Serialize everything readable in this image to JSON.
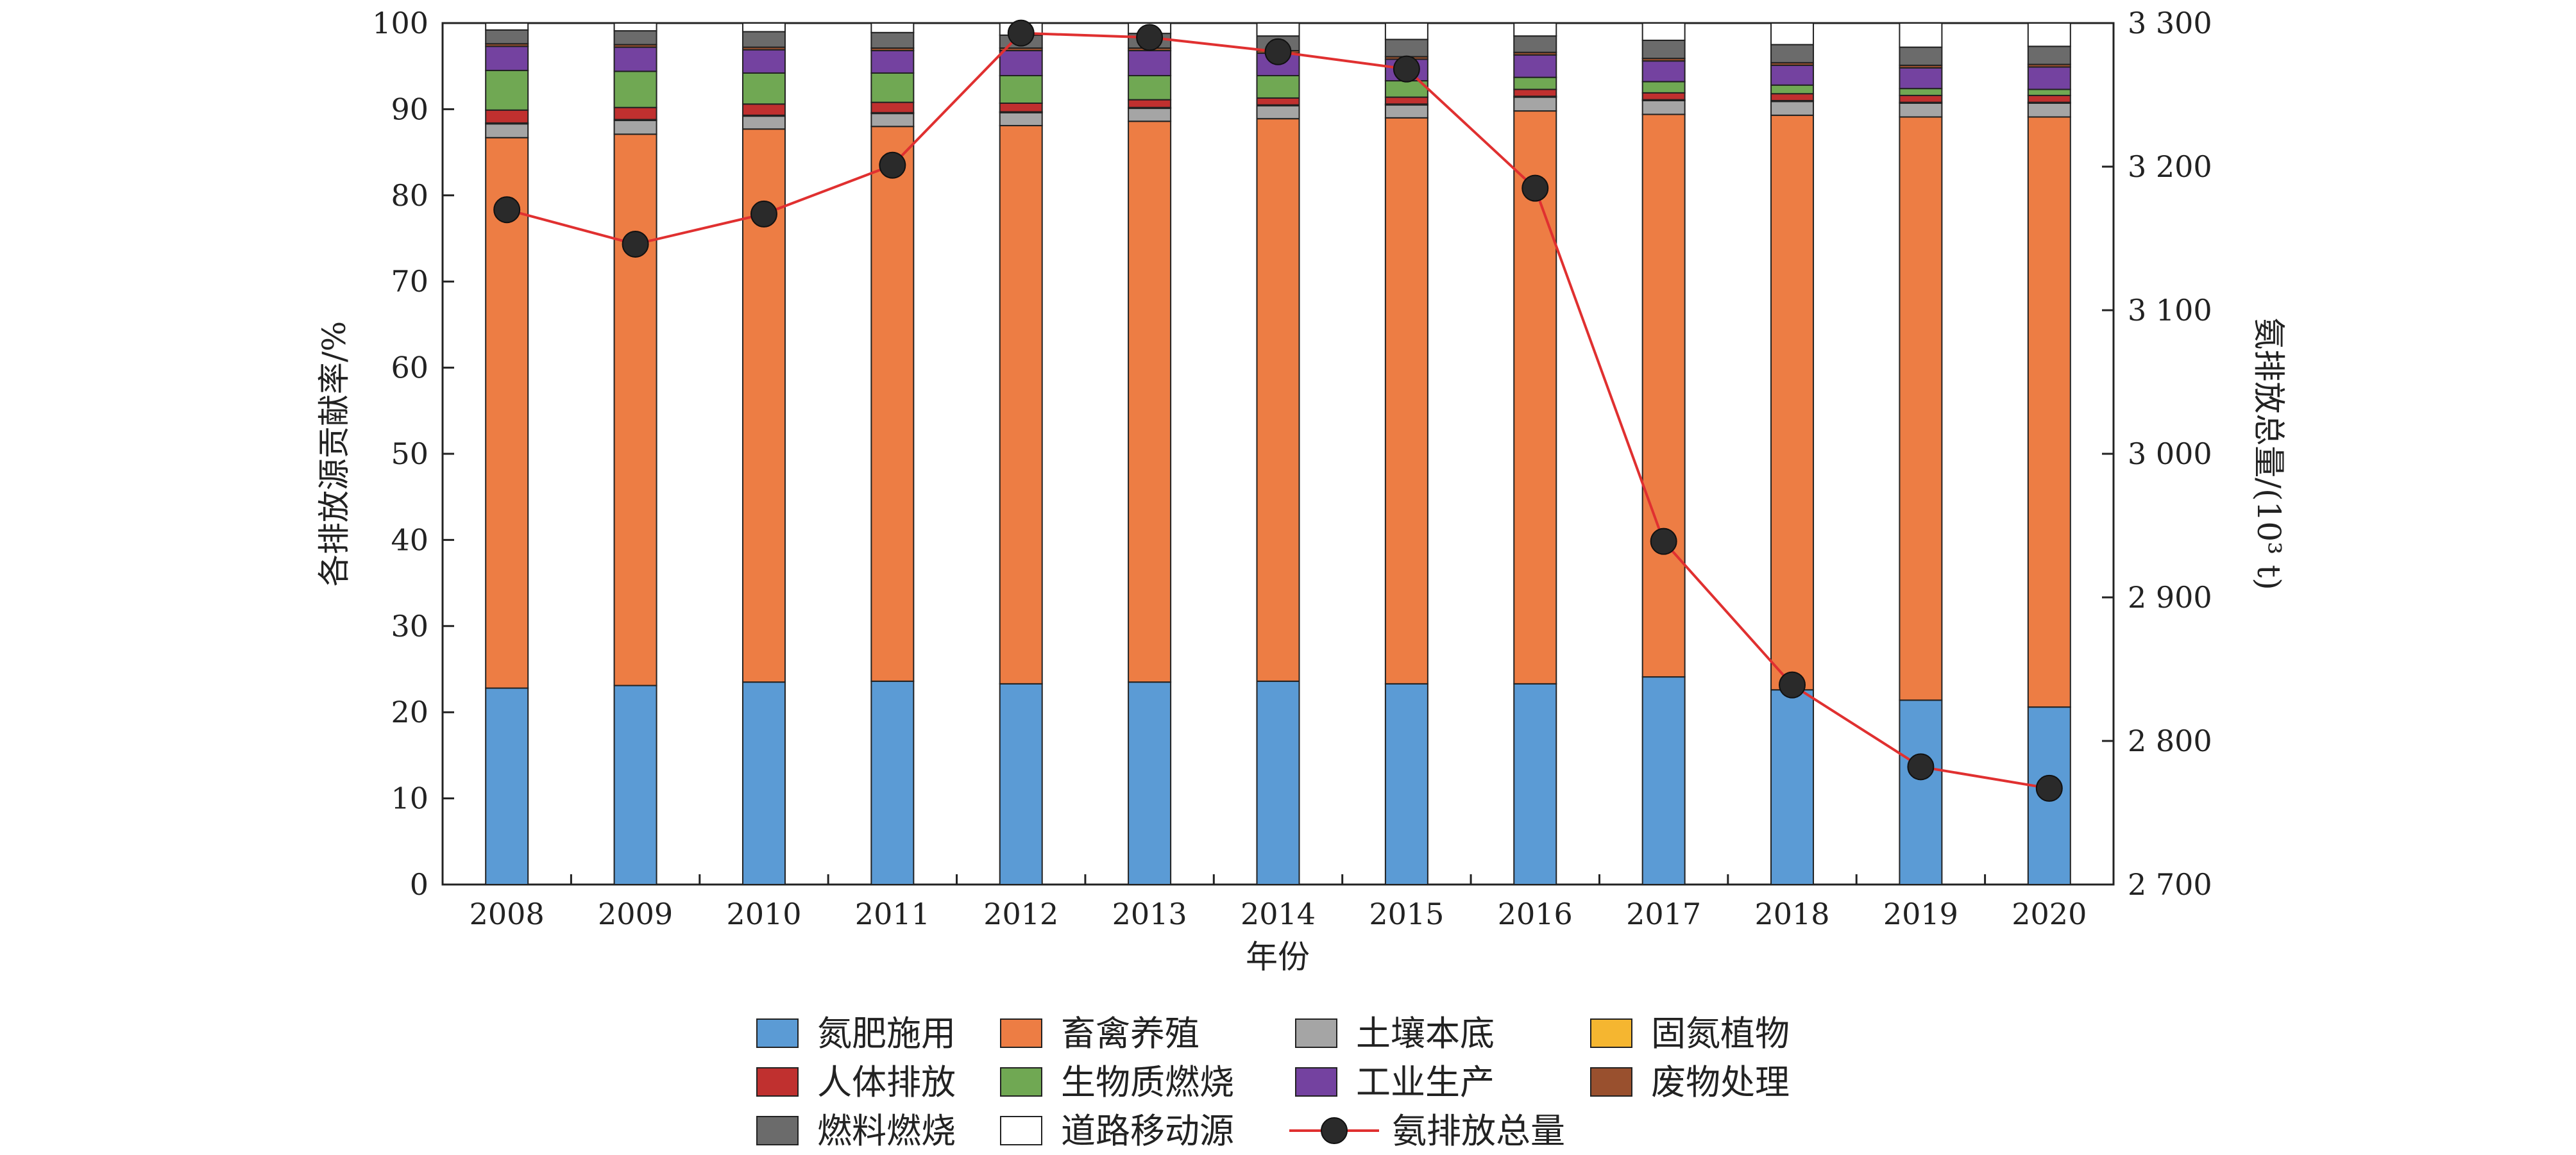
{
  "chart_data": {
    "type": "bar",
    "stacked": true,
    "xlabel": "年份",
    "ylabel": "各排放源贡献率/%",
    "y2label": "氨排放总量/(10³ t)",
    "categories": [
      "2008",
      "2009",
      "2010",
      "2011",
      "2012",
      "2013",
      "2014",
      "2015",
      "2016",
      "2017",
      "2018",
      "2019",
      "2020"
    ],
    "ylim": [
      0,
      100
    ],
    "yticks": [
      "0",
      "10",
      "20",
      "30",
      "40",
      "50",
      "60",
      "70",
      "80",
      "90",
      "100"
    ],
    "y2lim": [
      2700,
      3300
    ],
    "y2ticks": [
      "2 700",
      "2 800",
      "2 900",
      "3 000",
      "3 100",
      "3 200",
      "3 300"
    ],
    "grid": false,
    "legend_position": "bottom",
    "series": [
      {
        "name": "氮肥施用",
        "color": "#5b9bd5",
        "values": [
          22.8,
          23.1,
          23.5,
          23.6,
          23.3,
          23.5,
          23.6,
          23.3,
          23.3,
          24.1,
          22.6,
          21.4,
          20.6
        ]
      },
      {
        "name": "畜禽养殖",
        "color": "#ed7d44",
        "values": [
          63.9,
          64.0,
          64.2,
          64.4,
          64.8,
          65.1,
          65.3,
          65.7,
          66.5,
          65.3,
          66.7,
          67.7,
          68.5
        ]
      },
      {
        "name": "土壤本底",
        "color": "#a5a5a5",
        "values": [
          1.6,
          1.6,
          1.5,
          1.5,
          1.5,
          1.5,
          1.5,
          1.5,
          1.6,
          1.6,
          1.6,
          1.6,
          1.6
        ]
      },
      {
        "name": "固氮植物",
        "color": "#f5b630",
        "values": [
          0.1,
          0.1,
          0.1,
          0.1,
          0.1,
          0.1,
          0.1,
          0.1,
          0.1,
          0.1,
          0.1,
          0.1,
          0.1
        ]
      },
      {
        "name": "人体排放",
        "color": "#c0302f",
        "values": [
          1.5,
          1.4,
          1.3,
          1.2,
          1.0,
          0.9,
          0.8,
          0.8,
          0.8,
          0.8,
          0.8,
          0.8,
          0.8
        ]
      },
      {
        "name": "生物质燃烧",
        "color": "#70a853",
        "values": [
          4.6,
          4.2,
          3.6,
          3.4,
          3.2,
          2.8,
          2.6,
          1.9,
          1.4,
          1.3,
          1.0,
          0.8,
          0.7
        ]
      },
      {
        "name": "工业生产",
        "color": "#7442a0",
        "values": [
          2.8,
          2.8,
          2.7,
          2.6,
          2.9,
          2.9,
          2.6,
          2.5,
          2.6,
          2.4,
          2.3,
          2.4,
          2.6
        ]
      },
      {
        "name": "废物处理",
        "color": "#99502e",
        "values": [
          0.3,
          0.3,
          0.3,
          0.3,
          0.3,
          0.3,
          0.3,
          0.3,
          0.3,
          0.3,
          0.3,
          0.3,
          0.3
        ]
      },
      {
        "name": "燃料燃烧",
        "color": "#6b6b6b",
        "values": [
          1.6,
          1.6,
          1.8,
          1.8,
          1.5,
          1.7,
          1.7,
          2.0,
          1.9,
          2.1,
          2.1,
          2.1,
          2.1
        ]
      },
      {
        "name": "道路移动源",
        "color": "#ffffff",
        "values": [
          0.8,
          0.9,
          1.0,
          1.1,
          1.4,
          1.2,
          1.5,
          1.9,
          1.5,
          2.0,
          2.5,
          2.8,
          2.7
        ]
      }
    ],
    "line_series": {
      "name": "氨排放总量",
      "color": "#e03030",
      "axis": "right",
      "values": [
        3170,
        3146,
        3167,
        3201,
        3293,
        3290,
        3280,
        3268,
        3185,
        2939,
        2839,
        2782,
        2767
      ]
    },
    "legend_order": [
      "氮肥施用",
      "畜禽养殖",
      "土壤本底",
      "固氮植物",
      "人体排放",
      "生物质燃烧",
      "工业生产",
      "废物处理",
      "燃料燃烧",
      "道路移动源",
      "氨排放总量"
    ]
  }
}
